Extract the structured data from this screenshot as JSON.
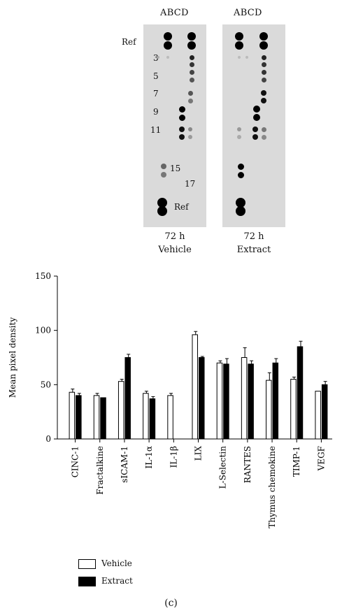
{
  "blots": {
    "panels": [
      {
        "header": "ABCD",
        "time": "72 h",
        "condition": "Vehicle"
      },
      {
        "header": "ABCD",
        "time": "72 h",
        "condition": "Extract"
      }
    ],
    "spot_labels": [
      "Ref",
      "3",
      "5",
      "7",
      "9",
      "11",
      "15",
      "17",
      "Ref"
    ]
  },
  "chart_data": {
    "type": "bar",
    "ylabel": "Mean pixel density",
    "xlabel": "",
    "ylim": [
      0,
      150
    ],
    "yticks": [
      0,
      50,
      100,
      150
    ],
    "grid": false,
    "legend": "bottom-left",
    "categories": [
      "CINC-1",
      "Fractalkine",
      "sICAM-1",
      "IL-1α",
      "IL-1β",
      "LIX",
      "L-Selectin",
      "RANTES",
      "Thymus chemokine",
      "TIMP-1",
      "VEGF"
    ],
    "series": [
      {
        "name": "Vehicle",
        "color": "#ffffff",
        "values": [
          43,
          40,
          53,
          42,
          40,
          96,
          70,
          75,
          54,
          55,
          44
        ],
        "errors": [
          3,
          2,
          2,
          2,
          2,
          3,
          2,
          9,
          7,
          2,
          0
        ]
      },
      {
        "name": "Extract",
        "color": "#000000",
        "values": [
          40,
          38,
          75,
          37,
          0,
          75,
          69,
          69,
          70,
          85,
          50
        ],
        "errors": [
          2,
          0,
          3,
          2,
          0,
          1,
          5,
          3,
          4,
          5,
          3
        ]
      }
    ]
  },
  "legend": {
    "vehicle": "Vehicle",
    "extract": "Extract"
  },
  "figure_label": "(c)"
}
